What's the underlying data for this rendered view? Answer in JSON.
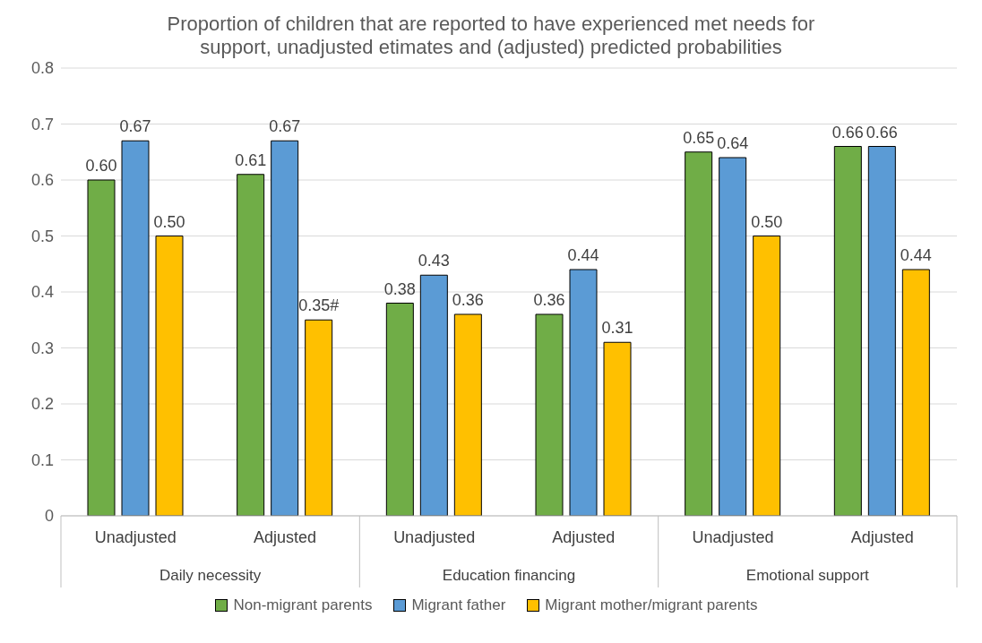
{
  "chart_data": {
    "type": "bar",
    "title": "Proportion of children that are reported to have experienced met needs for support, unadjusted etimates and (adjusted) predicted probabilities",
    "categories": [
      "Unadjusted",
      "Adjusted",
      "Unadjusted",
      "Adjusted",
      "Unadjusted",
      "Adjusted"
    ],
    "series": [
      {
        "name": "Non-migrant parents",
        "color": "#70ad47",
        "values": [
          0.6,
          0.61,
          0.38,
          0.36,
          0.65,
          0.66
        ],
        "value_labels": [
          "0.60",
          "0.61",
          "0.38",
          "0.36",
          "0.65",
          "0.66"
        ]
      },
      {
        "name": "Migrant father",
        "color": "#5b9bd5",
        "values": [
          0.67,
          0.67,
          0.43,
          0.44,
          0.64,
          0.66
        ],
        "value_labels": [
          "0.67",
          "0.67",
          "0.43",
          "0.44",
          "0.64",
          "0.66"
        ]
      },
      {
        "name": "Migrant mother/migrant parents",
        "color": "#ffc000",
        "values": [
          0.5,
          0.35,
          0.36,
          0.31,
          0.5,
          0.44
        ],
        "value_labels": [
          "0.50",
          "0.35#",
          "0.36",
          "0.31",
          "0.50",
          "0.44"
        ]
      }
    ],
    "annotations": [
      "Daily necessity",
      "Education financing",
      "Emotional support"
    ],
    "ylim": [
      0,
      0.8
    ],
    "yticks": [
      0,
      0.1,
      0.2,
      0.3,
      0.4,
      0.5,
      0.6,
      0.7,
      0.8
    ],
    "grid": "y",
    "legend": "bottom"
  }
}
